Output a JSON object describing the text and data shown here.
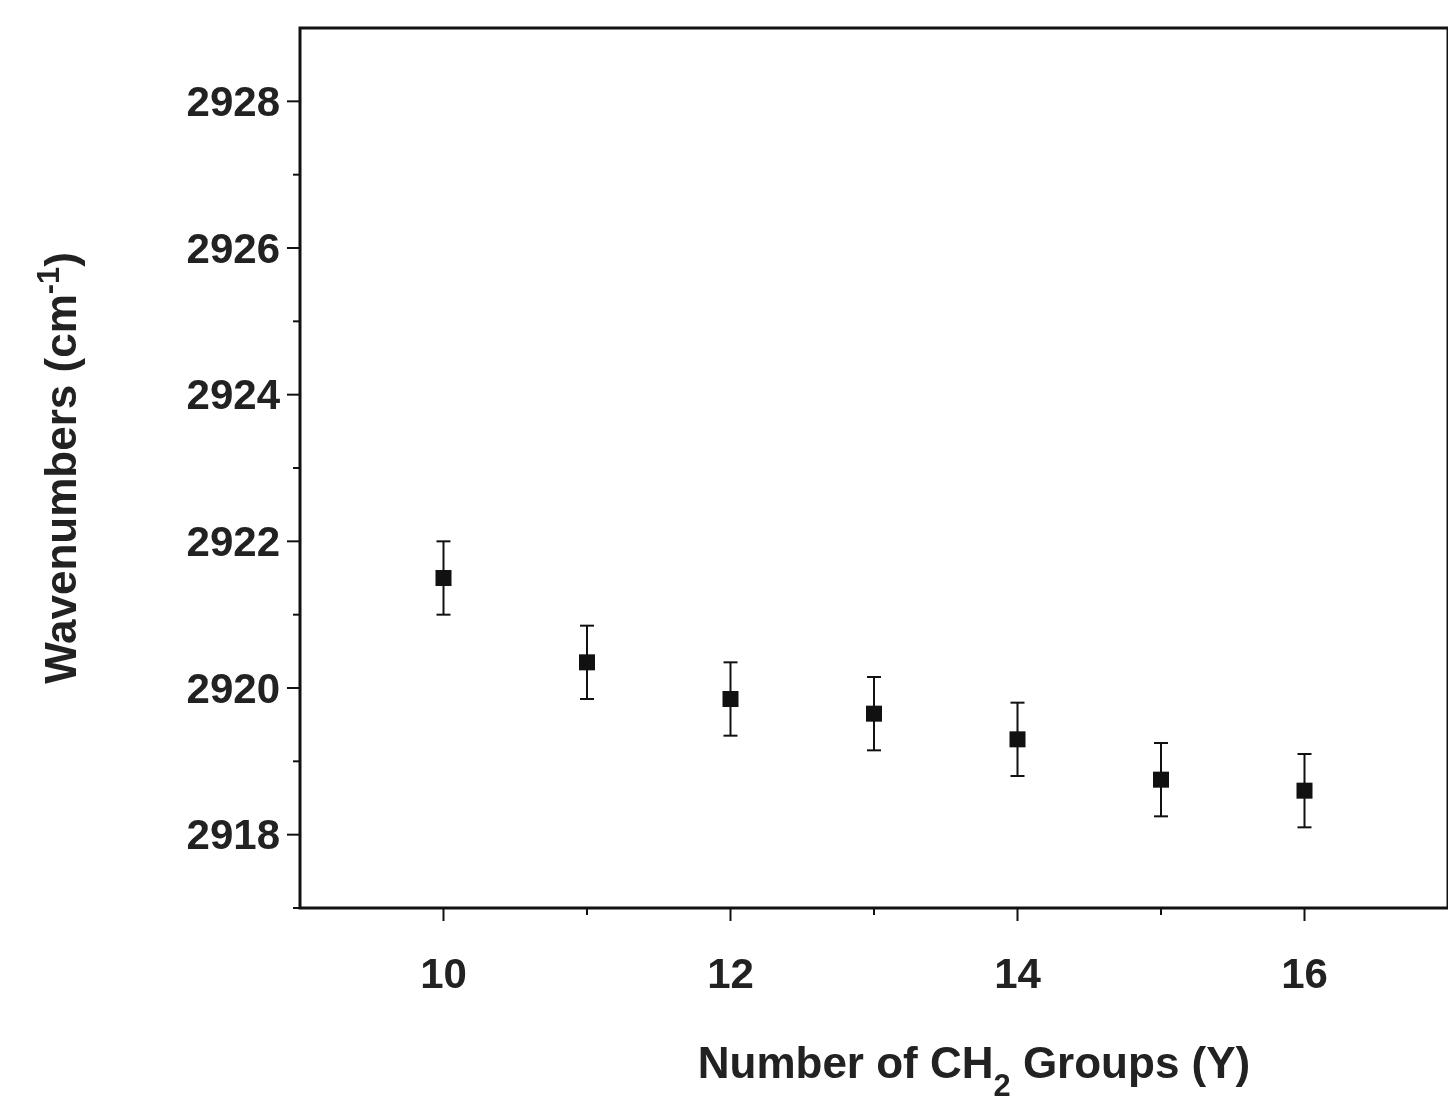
{
  "chart_data": {
    "type": "scatter",
    "xlabel": "Number of CH$_{2}$ Groups (Y)",
    "ylabel": "Wavenumbers (cm$^{-1}$)",
    "x": [
      10,
      11,
      12,
      13,
      14,
      15,
      16
    ],
    "series": [
      {
        "color": "#111111",
        "values": [
          2921.5,
          2920.35,
          2919.85,
          2919.65,
          2919.3,
          2918.75,
          2918.6
        ],
        "errors": [
          0.5,
          0.5,
          0.5,
          0.5,
          0.5,
          0.5,
          0.5
        ]
      }
    ],
    "xlim": [
      9,
      17
    ],
    "ylim": [
      2917,
      2929
    ],
    "xticks": [
      10,
      {
        "value": 11,
        "label": null
      },
      12,
      {
        "value": 13,
        "label": null
      },
      14,
      {
        "value": 15,
        "label": null
      },
      16
    ],
    "yticks": [
      {
        "value": 2917,
        "label": null
      },
      2918,
      {
        "value": 2919,
        "label": null
      },
      2920,
      {
        "value": 2921,
        "label": null
      },
      2922,
      {
        "value": 2923,
        "label": null
      },
      2924,
      {
        "value": 2925,
        "label": null
      },
      2926,
      {
        "value": 2927,
        "label": null
      },
      2928
    ],
    "marker": "square",
    "grid": false
  }
}
